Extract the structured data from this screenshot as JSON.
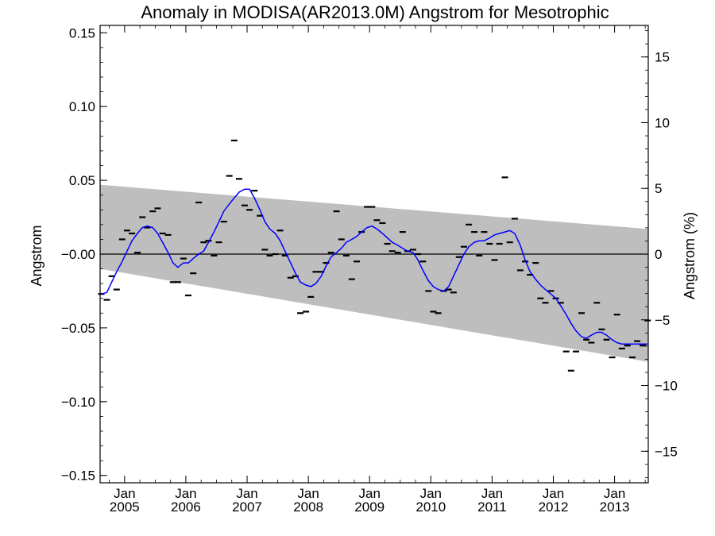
{
  "chart_data": {
    "type": "line",
    "title": "Anomaly in MODISA(AR2013.0M) Angstrom for Mesotrophic",
    "ylabel": "Angstrom",
    "ylabel_right": "Angstrom (%)",
    "xlabel": "",
    "ylim": [
      -0.155,
      0.155
    ],
    "ylim_right": [
      -17.4,
      17.4
    ],
    "xlim": [
      2004.6,
      2013.55
    ],
    "yticks": [
      {
        "v": -0.15,
        "label": "−0.15"
      },
      {
        "v": -0.1,
        "label": "−0.10"
      },
      {
        "v": -0.05,
        "label": "−0.05"
      },
      {
        "v": 0.0,
        "label": "−0.00"
      },
      {
        "v": 0.05,
        "label": "0.05"
      },
      {
        "v": 0.1,
        "label": "0.10"
      },
      {
        "v": 0.15,
        "label": "0.15"
      }
    ],
    "yticks_right": [
      {
        "v": -15,
        "label": "−15"
      },
      {
        "v": -10,
        "label": "−10"
      },
      {
        "v": -5,
        "label": "−5"
      },
      {
        "v": 0,
        "label": "0"
      },
      {
        "v": 5,
        "label": "5"
      },
      {
        "v": 10,
        "label": "10"
      },
      {
        "v": 15,
        "label": "15"
      }
    ],
    "xticks": [
      {
        "v": 2005.0,
        "month": "Jan",
        "year": "2005"
      },
      {
        "v": 2006.0,
        "month": "Jan",
        "year": "2006"
      },
      {
        "v": 2007.0,
        "month": "Jan",
        "year": "2007"
      },
      {
        "v": 2008.0,
        "month": "Jan",
        "year": "2008"
      },
      {
        "v": 2009.0,
        "month": "Jan",
        "year": "2009"
      },
      {
        "v": 2010.0,
        "month": "Jan",
        "year": "2010"
      },
      {
        "v": 2011.0,
        "month": "Jan",
        "year": "2011"
      },
      {
        "v": 2012.0,
        "month": "Jan",
        "year": "2012"
      },
      {
        "v": 2013.0,
        "month": "Jan",
        "year": "2013"
      }
    ],
    "band": {
      "x": [
        2004.6,
        2013.55
      ],
      "upper": [
        0.047,
        0.017
      ],
      "lower": [
        -0.01,
        -0.073
      ],
      "color": "#bebebe"
    },
    "zero_line": 0,
    "series": [
      {
        "kind": "monthly-markers",
        "color": "#000000",
        "x": [
          2004.62,
          2004.71,
          2004.79,
          2004.87,
          2004.96,
          2005.04,
          2005.12,
          2005.21,
          2005.29,
          2005.37,
          2005.46,
          2005.54,
          2005.62,
          2005.71,
          2005.79,
          2005.87,
          2005.96,
          2006.04,
          2006.12,
          2006.21,
          2006.29,
          2006.37,
          2006.46,
          2006.54,
          2006.62,
          2006.71,
          2006.79,
          2006.87,
          2006.96,
          2007.04,
          2007.12,
          2007.21,
          2007.29,
          2007.37,
          2007.46,
          2007.54,
          2007.62,
          2007.71,
          2007.79,
          2007.87,
          2007.96,
          2008.04,
          2008.12,
          2008.21,
          2008.29,
          2008.37,
          2008.46,
          2008.54,
          2008.62,
          2008.71,
          2008.79,
          2008.87,
          2008.96,
          2009.04,
          2009.12,
          2009.21,
          2009.29,
          2009.37,
          2009.46,
          2009.54,
          2009.62,
          2009.71,
          2009.79,
          2009.87,
          2009.96,
          2010.04,
          2010.12,
          2010.21,
          2010.29,
          2010.37,
          2010.46,
          2010.54,
          2010.62,
          2010.71,
          2010.79,
          2010.87,
          2010.96,
          2011.04,
          2011.12,
          2011.21,
          2011.29,
          2011.37,
          2011.46,
          2011.54,
          2011.62,
          2011.71,
          2011.79,
          2011.87,
          2011.96,
          2012.04,
          2012.12,
          2012.21,
          2012.29,
          2012.37,
          2012.46,
          2012.54,
          2012.62,
          2012.71,
          2012.79,
          2012.87,
          2012.96,
          2013.04,
          2013.12,
          2013.21,
          2013.29,
          2013.37,
          2013.46,
          2013.54
        ],
        "values": [
          -0.027,
          -0.031,
          -0.015,
          -0.024,
          0.01,
          0.016,
          0.014,
          0.001,
          0.025,
          0.018,
          0.029,
          0.031,
          0.014,
          0.013,
          -0.019,
          -0.019,
          -0.003,
          -0.028,
          -0.013,
          0.035,
          0.008,
          0.009,
          -0.001,
          0.008,
          0.022,
          0.053,
          0.077,
          0.051,
          0.033,
          0.03,
          0.043,
          0.026,
          0.003,
          -0.001,
          0.0,
          0.016,
          -0.001,
          -0.016,
          -0.015,
          -0.04,
          -0.039,
          -0.029,
          -0.012,
          -0.012,
          -0.006,
          0.001,
          0.029,
          0.01,
          -0.001,
          -0.017,
          -0.005,
          0.015,
          0.032,
          0.032,
          0.023,
          0.021,
          0.007,
          0.002,
          0.001,
          0.015,
          0.002,
          0.003,
          0.0,
          -0.005,
          -0.025,
          -0.039,
          -0.04,
          -0.025,
          -0.024,
          -0.026,
          -0.002,
          0.005,
          0.02,
          0.015,
          -0.001,
          0.015,
          0.007,
          -0.004,
          0.007,
          0.052,
          0.008,
          0.024,
          -0.011,
          -0.005,
          -0.014,
          -0.006,
          -0.03,
          -0.033,
          -0.025,
          -0.03,
          -0.033,
          -0.066,
          -0.079,
          -0.066,
          -0.04,
          -0.058,
          -0.06,
          -0.033,
          -0.051,
          -0.058,
          -0.07,
          -0.041,
          -0.064,
          -0.062,
          -0.07,
          -0.059,
          -0.062,
          -0.045
        ]
      },
      {
        "kind": "running-mean",
        "color": "#0000ff",
        "x": [
          2004.62,
          2004.71,
          2004.79,
          2004.87,
          2004.96,
          2005.04,
          2005.12,
          2005.21,
          2005.29,
          2005.37,
          2005.46,
          2005.54,
          2005.62,
          2005.71,
          2005.79,
          2005.87,
          2005.96,
          2006.04,
          2006.12,
          2006.21,
          2006.29,
          2006.37,
          2006.46,
          2006.54,
          2006.62,
          2006.71,
          2006.79,
          2006.87,
          2006.96,
          2007.04,
          2007.12,
          2007.21,
          2007.29,
          2007.37,
          2007.46,
          2007.54,
          2007.62,
          2007.71,
          2007.79,
          2007.87,
          2007.96,
          2008.04,
          2008.12,
          2008.21,
          2008.29,
          2008.37,
          2008.46,
          2008.54,
          2008.62,
          2008.71,
          2008.79,
          2008.87,
          2008.96,
          2009.04,
          2009.12,
          2009.21,
          2009.29,
          2009.37,
          2009.46,
          2009.54,
          2009.62,
          2009.71,
          2009.79,
          2009.87,
          2009.96,
          2010.04,
          2010.12,
          2010.21,
          2010.29,
          2010.37,
          2010.46,
          2010.54,
          2010.62,
          2010.71,
          2010.79,
          2010.87,
          2010.96,
          2011.04,
          2011.12,
          2011.21,
          2011.29,
          2011.37,
          2011.46,
          2011.54,
          2011.62,
          2011.71,
          2011.79,
          2011.87,
          2011.96,
          2012.04,
          2012.12,
          2012.21,
          2012.29,
          2012.37,
          2012.46,
          2012.54,
          2012.62,
          2012.71,
          2012.79,
          2012.87,
          2012.96,
          2013.04,
          2013.12,
          2013.21,
          2013.29,
          2013.37,
          2013.46,
          2013.54
        ],
        "values": [
          -0.027,
          -0.026,
          -0.019,
          -0.012,
          -0.005,
          0.002,
          0.009,
          0.014,
          0.018,
          0.019,
          0.018,
          0.014,
          0.008,
          0.001,
          -0.006,
          -0.009,
          -0.006,
          -0.006,
          -0.003,
          0.0,
          0.002,
          0.008,
          0.015,
          0.022,
          0.029,
          0.034,
          0.038,
          0.042,
          0.044,
          0.044,
          0.038,
          0.03,
          0.022,
          0.017,
          0.014,
          0.009,
          0.002,
          -0.006,
          -0.013,
          -0.019,
          -0.021,
          -0.022,
          -0.02,
          -0.015,
          -0.008,
          -0.002,
          0.001,
          0.004,
          0.008,
          0.01,
          0.012,
          0.015,
          0.018,
          0.019,
          0.017,
          0.014,
          0.011,
          0.008,
          0.006,
          0.004,
          0.002,
          0.001,
          -0.004,
          -0.011,
          -0.018,
          -0.022,
          -0.024,
          -0.025,
          -0.022,
          -0.015,
          -0.007,
          0.0,
          0.005,
          0.008,
          0.009,
          0.009,
          0.011,
          0.013,
          0.014,
          0.015,
          0.016,
          0.014,
          0.006,
          -0.004,
          -0.012,
          -0.017,
          -0.021,
          -0.024,
          -0.027,
          -0.03,
          -0.035,
          -0.041,
          -0.047,
          -0.052,
          -0.056,
          -0.057,
          -0.055,
          -0.053,
          -0.053,
          -0.055,
          -0.058,
          -0.06,
          -0.061,
          -0.061,
          -0.061,
          -0.061,
          -0.061,
          -0.061
        ]
      }
    ]
  }
}
